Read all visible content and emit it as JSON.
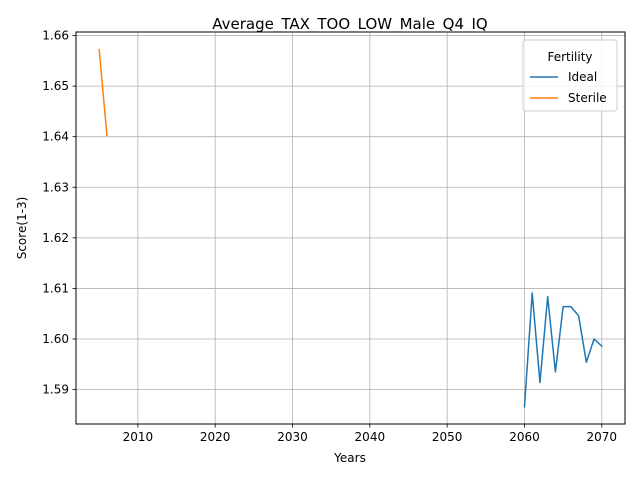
{
  "chart_data": {
    "type": "line",
    "title": "Average_TAX_TOO_LOW_Male_Q4_IQ",
    "xlabel": "Years",
    "ylabel": "Score(1-3)",
    "xlim": [
      2002,
      2073
    ],
    "ylim": [
      1.5832,
      1.6607
    ],
    "xticks": [
      "2010",
      "2020",
      "2030",
      "2040",
      "2050",
      "2060",
      "2070"
    ],
    "yticks": [
      "1.59",
      "1.60",
      "1.61",
      "1.62",
      "1.63",
      "1.64",
      "1.65",
      "1.66"
    ],
    "grid": true,
    "legend": {
      "title": "Fertility",
      "placement": "top-right"
    },
    "series": [
      {
        "name": "Ideal",
        "color": "#1f77b4",
        "x": [
          2060,
          2061,
          2062,
          2063,
          2064,
          2065,
          2066,
          2067,
          2068,
          2069,
          2070
        ],
        "y": [
          1.5866,
          1.6091,
          1.5914,
          1.6084,
          1.5935,
          1.6064,
          1.6064,
          1.6046,
          1.5954,
          1.6,
          1.5986
        ]
      },
      {
        "name": "Sterile",
        "color": "#ff7f0e",
        "x": [
          2005,
          2006
        ],
        "y": [
          1.6572,
          1.6403
        ]
      }
    ]
  }
}
